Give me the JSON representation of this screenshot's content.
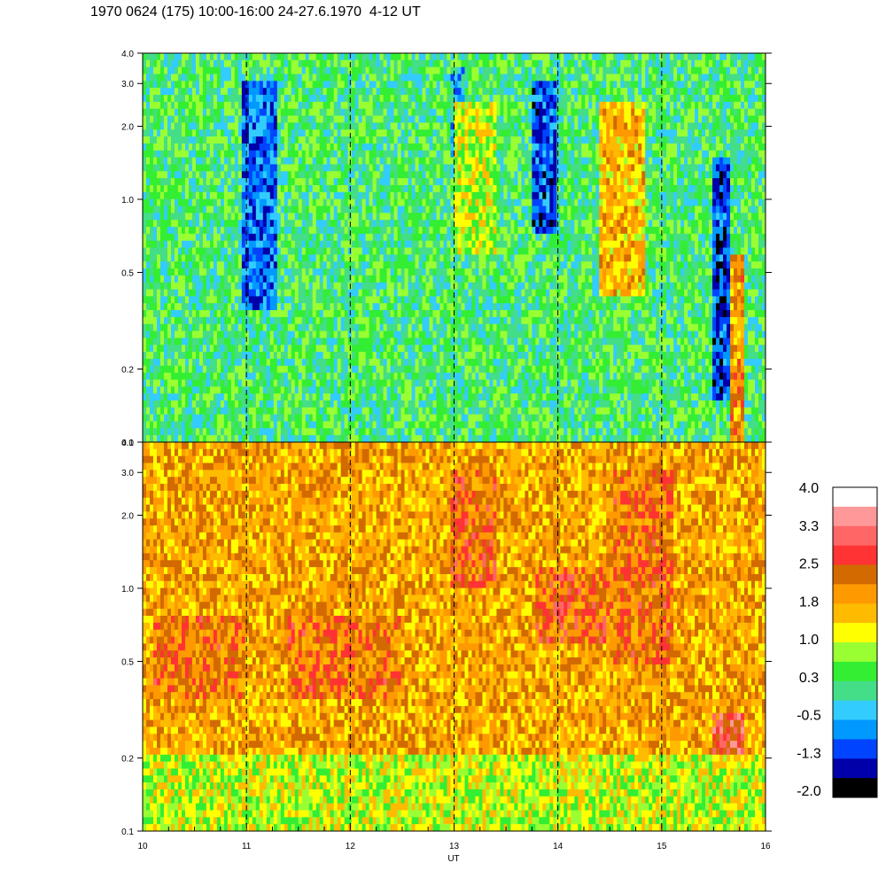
{
  "title": "1970 0624 (175) 10:00-16:00 24-27.6.1970  4-12 UT",
  "chart_data": {
    "type": "heatmap",
    "title": "1970 0624 (175) 10:00-16:00 24-27.6.1970  4-12 UT",
    "xlabel": "UT",
    "ylabel": "",
    "x_range": [
      10,
      16
    ],
    "x_ticks": [
      {
        "value": 10,
        "label": "10"
      },
      {
        "value": 11,
        "label": "11"
      },
      {
        "value": 12,
        "label": "12"
      },
      {
        "value": 13,
        "label": "13"
      },
      {
        "value": 14,
        "label": "14"
      },
      {
        "value": 15,
        "label": "15"
      },
      {
        "value": 16,
        "label": "16"
      }
    ],
    "x_gridlines": [
      11,
      12,
      13,
      14,
      15
    ],
    "y_scale": "log",
    "y_range": [
      0.1,
      4.0
    ],
    "y_ticks": [
      {
        "value": 0.1,
        "label": "0.1"
      },
      {
        "value": 0.2,
        "label": "0.2"
      },
      {
        "value": 0.5,
        "label": "0.5"
      },
      {
        "value": 1.0,
        "label": "1.0"
      },
      {
        "value": 2.0,
        "label": "2.0"
      },
      {
        "value": 3.0,
        "label": "3.0"
      },
      {
        "value": 4.0,
        "label": "4.0"
      }
    ],
    "panels": [
      {
        "name": "upper",
        "dominant_level": 0.3,
        "features": [
          {
            "t": [
              10.95,
              11.3
            ],
            "f": [
              0.35,
              3.0
            ],
            "level": -0.9
          },
          {
            "t": [
              12.95,
              13.1
            ],
            "f": [
              1.5,
              3.5
            ],
            "level": -0.5
          },
          {
            "t": [
              13.75,
              14.0
            ],
            "f": [
              0.7,
              3.0
            ],
            "level": -1.0
          },
          {
            "t": [
              14.4,
              14.85
            ],
            "f": [
              0.4,
              2.5
            ],
            "level": 1.6
          },
          {
            "t": [
              13.0,
              13.4
            ],
            "f": [
              0.6,
              2.5
            ],
            "level": 1.0
          },
          {
            "t": [
              15.5,
              15.65
            ],
            "f": [
              0.15,
              1.5
            ],
            "level": -1.1
          },
          {
            "t": [
              15.65,
              15.78
            ],
            "f": [
              0.1,
              0.6
            ],
            "level": 1.9
          }
        ]
      },
      {
        "name": "lower",
        "dominant_level": 1.8,
        "features": [
          {
            "t": [
              10.1,
              11.0
            ],
            "f": [
              0.35,
              0.75
            ],
            "level": 2.2
          },
          {
            "t": [
              11.4,
              12.5
            ],
            "f": [
              0.35,
              0.75
            ],
            "level": 2.2
          },
          {
            "t": [
              12.95,
              13.4
            ],
            "f": [
              1.0,
              3.0
            ],
            "level": 2.3
          },
          {
            "t": [
              13.8,
              14.5
            ],
            "f": [
              0.6,
              1.2
            ],
            "level": 2.3
          },
          {
            "t": [
              14.5,
              15.1
            ],
            "f": [
              0.5,
              3.0
            ],
            "level": 2.2
          },
          {
            "t": [
              15.5,
              15.8
            ],
            "f": [
              0.1,
              0.3
            ],
            "level": 2.8
          },
          {
            "t": [
              10.0,
              16.0
            ],
            "f": [
              0.1,
              0.2
            ],
            "level": 1.0
          }
        ]
      }
    ],
    "colorbar": {
      "levels": [
        4.0,
        3.3,
        2.5,
        1.8,
        1.0,
        0.3,
        -0.5,
        -1.3,
        -2.0
      ],
      "labels": [
        "4.0",
        "3.3",
        "2.5",
        "1.8",
        "1.0",
        "0.3",
        "-0.5",
        "-1.3",
        "-2.0"
      ],
      "colors": [
        "#ffffff",
        "#ff9999",
        "#ff6666",
        "#ff3333",
        "#d26a00",
        "#ff9900",
        "#ffbb00",
        "#ffff00",
        "#99ff33",
        "#33ee33",
        "#44dd88",
        "#33ccff",
        "#0099ff",
        "#0044ff",
        "#0000aa",
        "#000000"
      ]
    }
  }
}
